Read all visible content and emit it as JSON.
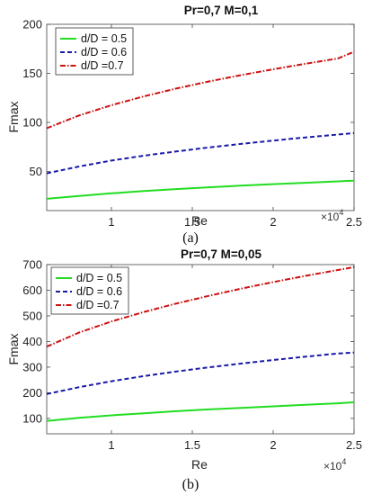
{
  "chart_data": [
    {
      "type": "line",
      "title": "Pr=0,7     M=0,1",
      "xlabel": "Re",
      "ylabel": "Fmax",
      "x_exponent_label": "×10",
      "x_exponent_power": "4",
      "caption": "(a)",
      "xlim": [
        0.6,
        2.5
      ],
      "ylim": [
        10,
        200
      ],
      "xticks": [
        1,
        1.5,
        2,
        2.5
      ],
      "xtick_labels": [
        "1",
        "1.5",
        "2",
        "2.5"
      ],
      "yticks": [
        50,
        100,
        150,
        200
      ],
      "ytick_labels": [
        "50",
        "100",
        "150",
        "200"
      ],
      "grid": false,
      "legend_position": "top-left",
      "x": [
        0.6,
        0.8,
        1.0,
        1.2,
        1.4,
        1.6,
        1.8,
        2.0,
        2.2,
        2.4,
        2.5
      ],
      "series": [
        {
          "name": "d/D = 0.5",
          "color": "#22dd22",
          "dash": "solid",
          "values": [
            22,
            25,
            27.6,
            29.9,
            31.9,
            33.8,
            35.4,
            37,
            38.4,
            39.8,
            40.5
          ]
        },
        {
          "name": "d/D = 0.6",
          "color": "#1a1aa8",
          "dash": "dashed",
          "values": [
            48,
            55,
            61,
            66,
            70.3,
            74.3,
            78,
            81.4,
            84.6,
            87.6,
            89
          ]
        },
        {
          "name": "d/D =0.7",
          "color": "#cc1111",
          "dash": "dashdot",
          "values": [
            94,
            107,
            117.5,
            126.5,
            134.5,
            141.6,
            148.1,
            154.1,
            159.8,
            165.1,
            172
          ]
        }
      ]
    },
    {
      "type": "line",
      "title": "Pr=0,7     M=0,05",
      "xlabel": "Re",
      "ylabel": "Fmax",
      "x_exponent_label": "×10",
      "x_exponent_power": "4",
      "caption": "(b)",
      "xlim": [
        0.6,
        2.5
      ],
      "ylim": [
        40,
        700
      ],
      "xticks": [
        1,
        1.5,
        2,
        2.5
      ],
      "xtick_labels": [
        "1",
        "1.5",
        "2",
        "2.5"
      ],
      "yticks": [
        100,
        200,
        300,
        400,
        500,
        600,
        700
      ],
      "ytick_labels": [
        "100",
        "200",
        "300",
        "400",
        "500",
        "600",
        "700"
      ],
      "grid": false,
      "legend_position": "top-left",
      "x": [
        0.6,
        0.8,
        1.0,
        1.2,
        1.4,
        1.6,
        1.8,
        2.0,
        2.2,
        2.4,
        2.5
      ],
      "series": [
        {
          "name": "d/D = 0.5",
          "color": "#22dd22",
          "dash": "solid",
          "values": [
            90,
            102,
            112,
            120,
            128,
            135,
            141,
            147,
            153,
            159,
            163
          ]
        },
        {
          "name": "d/D = 0.6",
          "color": "#1a1aa8",
          "dash": "dashed",
          "values": [
            195,
            222,
            245,
            265,
            283,
            299,
            314,
            328,
            341,
            353,
            357
          ]
        },
        {
          "name": "d/D =0.7",
          "color": "#cc1111",
          "dash": "dashdot",
          "values": [
            380,
            435,
            478,
            515,
            548,
            578,
            606,
            632,
            656,
            679,
            690
          ]
        }
      ]
    }
  ]
}
